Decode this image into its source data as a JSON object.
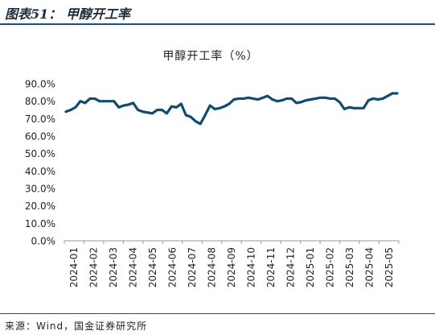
{
  "figure_title": "图表51：  甲醇开工率",
  "source": "来源：Wind，国金证券研究所",
  "colors": {
    "line": "#0f4c6e",
    "axis": "#999999",
    "rule": "#1f4e79"
  },
  "chart_data": {
    "type": "line",
    "title": "甲醇开工率（%）",
    "xlabel": "",
    "ylabel": "",
    "ylim": [
      0,
      90
    ],
    "yticks": [
      0,
      10,
      20,
      30,
      40,
      50,
      60,
      70,
      80,
      90
    ],
    "ytick_labels": [
      "0.0%",
      "10.0%",
      "20.0%",
      "30.0%",
      "40.0%",
      "50.0%",
      "60.0%",
      "70.0%",
      "80.0%",
      "90.0%"
    ],
    "xtick_labels": [
      "2024-01",
      "2024-02",
      "2024-03",
      "2024-04",
      "2024-05",
      "2024-06",
      "2024-07",
      "2024-08",
      "2024-09",
      "2024-10",
      "2024-11",
      "2024-12",
      "2025-01",
      "2025-02",
      "2025-03",
      "2025-04",
      "2025-05"
    ],
    "grid": false,
    "legend": "none",
    "series": [
      {
        "values": [
          74.0,
          75.0,
          76.5,
          80.0,
          79.0,
          81.5,
          81.5,
          80.0,
          80.0,
          80.0,
          80.0,
          76.5,
          77.5,
          78.0,
          79.0,
          75.0,
          74.0,
          73.5,
          73.0,
          75.0,
          75.0,
          73.0,
          77.0,
          76.5,
          78.5,
          72.0,
          71.0,
          68.5,
          67.0,
          72.0,
          77.5,
          75.5,
          76.0,
          77.0,
          78.5,
          81.0,
          81.5,
          81.5,
          82.0,
          81.5,
          81.0,
          82.0,
          83.0,
          81.0,
          80.0,
          80.5,
          81.5,
          81.5,
          79.0,
          79.5,
          80.5,
          81.0,
          81.5,
          82.0,
          82.0,
          81.5,
          81.5,
          79.5,
          75.5,
          76.5,
          76.0,
          76.0,
          76.0,
          80.5,
          81.5,
          81.0,
          81.5,
          83.0,
          84.5,
          84.5
        ]
      }
    ]
  }
}
